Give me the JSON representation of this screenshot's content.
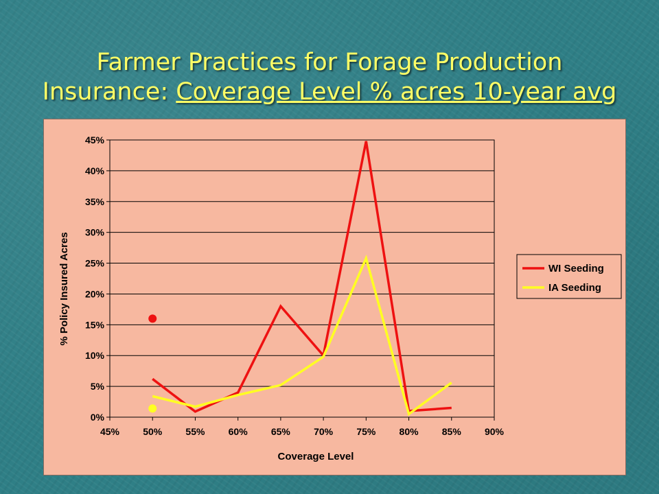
{
  "slide": {
    "title_line1": "Farmer Practices for Forage Production",
    "title_prefix": "Insurance: ",
    "title_underlined": "Coverage Level % acres 10-year avg"
  },
  "colors": {
    "title": "#ffff66",
    "background": "#2f7f86",
    "chart_area": "#f7b8a0",
    "wi": "#ee1111",
    "ia": "#ffff22"
  },
  "chart_data": {
    "type": "line",
    "xlabel": "Coverage Level",
    "ylabel": "% Policy Insured Acres",
    "x_ticks": [
      "45%",
      "50%",
      "55%",
      "60%",
      "65%",
      "70%",
      "75%",
      "80%",
      "85%",
      "90%"
    ],
    "y_ticks": [
      "0%",
      "5%",
      "10%",
      "15%",
      "20%",
      "25%",
      "30%",
      "35%",
      "40%",
      "45%"
    ],
    "xlim": [
      45,
      90
    ],
    "ylim": [
      0,
      45
    ],
    "grid": "horizontal",
    "legend_position": "right",
    "series": [
      {
        "name": "WI Seeding",
        "color": "#ee1111",
        "x": [
          50,
          55,
          60,
          65,
          70,
          75,
          80,
          85
        ],
        "y": [
          6.2,
          0.9,
          4.0,
          18.0,
          10.0,
          44.8,
          1.0,
          1.5
        ]
      },
      {
        "name": "IA Seeding",
        "color": "#ffff22",
        "x": [
          50,
          55,
          60,
          65,
          70,
          75,
          80,
          85
        ],
        "y": [
          3.4,
          1.7,
          3.6,
          5.2,
          9.8,
          25.8,
          0.5,
          5.6
        ]
      }
    ],
    "markers": [
      {
        "series": "WI Seeding",
        "x": 50,
        "y": 16.0,
        "color": "#ee1111"
      },
      {
        "series": "IA Seeding",
        "x": 50,
        "y": 1.4,
        "color": "#ffff22"
      }
    ]
  }
}
